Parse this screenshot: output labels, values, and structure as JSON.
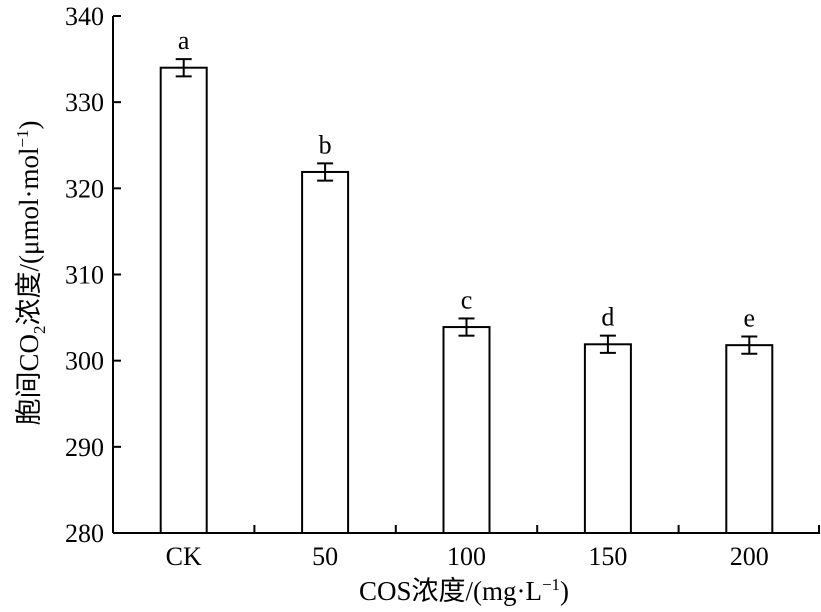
{
  "chart_data": {
    "type": "bar",
    "categories": [
      "CK",
      "50",
      "100",
      "150",
      "200"
    ],
    "values": [
      334.0,
      321.9,
      303.9,
      301.9,
      301.8
    ],
    "errors": [
      1.0,
      1.0,
      1.0,
      1.0,
      1.0
    ],
    "significance_labels": [
      "a",
      "b",
      "c",
      "d",
      "e"
    ],
    "xlabel": {
      "prefix": "COS浓度/(mg·L",
      "superscript": "−1",
      "suffix": ")"
    },
    "ylabel": {
      "part1": "胞间CO",
      "subscript": "2",
      "part2": "浓度/(μmol·mol",
      "superscript": "−1",
      "suffix": ")"
    },
    "ylim": [
      280,
      340
    ],
    "yticks": [
      "280",
      "290",
      "300",
      "310",
      "320",
      "330",
      "340"
    ],
    "grid": false,
    "legend": "none",
    "colors": {
      "bar_fill": "#ffffff",
      "bar_stroke": "#000000",
      "axis": "#000000"
    }
  }
}
